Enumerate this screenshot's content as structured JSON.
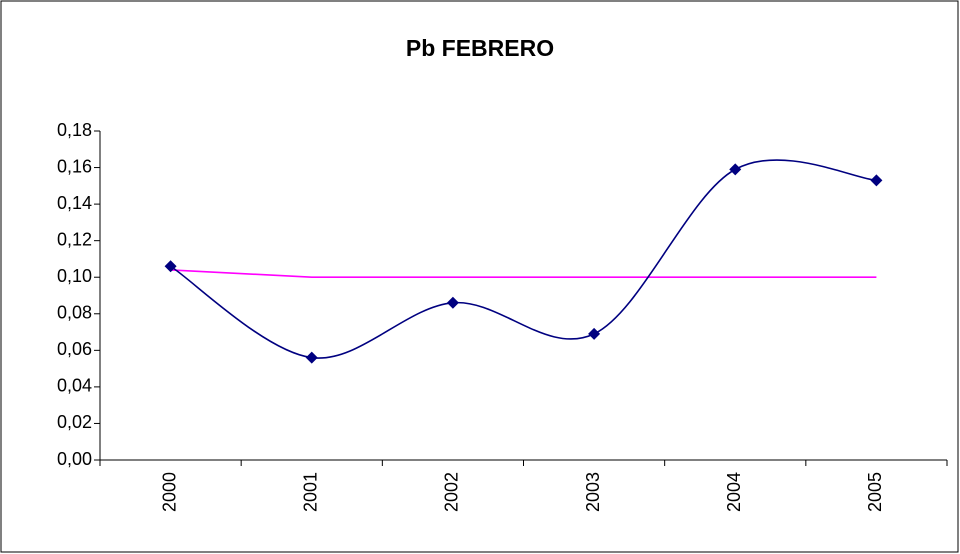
{
  "chart_data": {
    "type": "line",
    "title": "Pb FEBRERO",
    "categories": [
      "2000",
      "2001",
      "2002",
      "2003",
      "2004",
      "2005"
    ],
    "series": [
      {
        "color": "#000080",
        "smooth": true,
        "marker": "diamond",
        "values": [
          0.106,
          0.056,
          0.086,
          0.069,
          0.159,
          0.153
        ]
      },
      {
        "color": "#ff00ff",
        "smooth": false,
        "marker": "none",
        "values": [
          0.104,
          0.1,
          0.1,
          0.1,
          0.1,
          0.1
        ]
      }
    ],
    "ylim": [
      0,
      0.18
    ],
    "yticks": [
      {
        "value": 0,
        "label": "0,00"
      },
      {
        "value": 0.02,
        "label": "0,02"
      },
      {
        "value": 0.04,
        "label": "0,04"
      },
      {
        "value": 0.06,
        "label": "0,06"
      },
      {
        "value": 0.08,
        "label": "0,08"
      },
      {
        "value": 0.1,
        "label": "0,10"
      },
      {
        "value": 0.12,
        "label": "0,12"
      },
      {
        "value": 0.14,
        "label": "0,14"
      },
      {
        "value": 0.16,
        "label": "0,16"
      },
      {
        "value": 0.18,
        "label": "0,18"
      }
    ],
    "grid": false
  }
}
